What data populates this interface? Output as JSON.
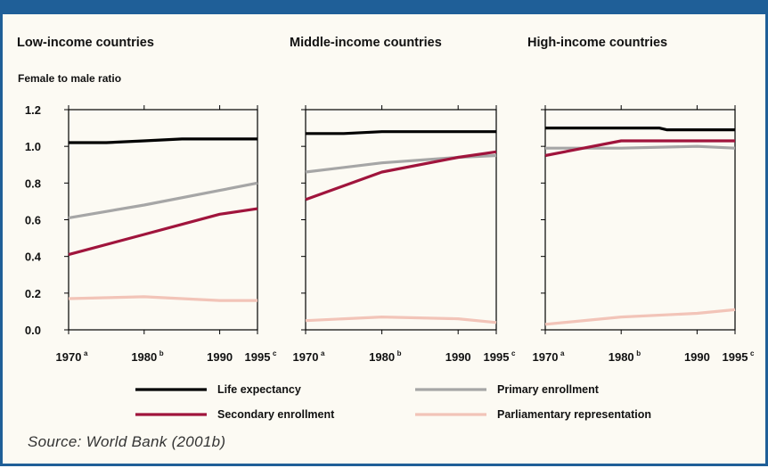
{
  "chart_data": {
    "type": "line",
    "ylabel": "Female to male ratio",
    "ylim": [
      0,
      1.2
    ],
    "y_ticks": [
      "0.0",
      "0.2",
      "0.4",
      "0.6",
      "0.8",
      "1.0",
      "1.2"
    ],
    "x": [
      1970,
      1980,
      1990,
      1995
    ],
    "x_ticks": [
      {
        "year": 1970,
        "label": "1970",
        "sup": "a"
      },
      {
        "year": 1980,
        "label": "1980",
        "sup": "b"
      },
      {
        "year": 1990,
        "label": "1990",
        "sup": ""
      },
      {
        "year": 1995,
        "label": "1995",
        "sup": "c"
      }
    ],
    "legend": [
      {
        "name": "Life expectancy",
        "color": "#000000"
      },
      {
        "name": "Primary enrollment",
        "color": "#a6a6a6"
      },
      {
        "name": "Secondary enrollment",
        "color": "#a0143c"
      },
      {
        "name": "Parliamentary representation",
        "color": "#f2c4b8"
      }
    ],
    "panels": [
      {
        "title": "Low-income countries",
        "series": [
          {
            "name": "Life expectancy",
            "color": "#000000",
            "points": [
              [
                1970,
                1.02
              ],
              [
                1975,
                1.02
              ],
              [
                1980,
                1.03
              ],
              [
                1985,
                1.04
              ],
              [
                1990,
                1.04
              ],
              [
                1995,
                1.04
              ]
            ]
          },
          {
            "name": "Primary enrollment",
            "color": "#a6a6a6",
            "points": [
              [
                1970,
                0.61
              ],
              [
                1980,
                0.68
              ],
              [
                1990,
                0.76
              ],
              [
                1995,
                0.8
              ]
            ]
          },
          {
            "name": "Secondary enrollment",
            "color": "#a0143c",
            "points": [
              [
                1970,
                0.41
              ],
              [
                1980,
                0.52
              ],
              [
                1990,
                0.63
              ],
              [
                1995,
                0.66
              ]
            ]
          },
          {
            "name": "Parliamentary representation",
            "color": "#f2c4b8",
            "points": [
              [
                1970,
                0.17
              ],
              [
                1980,
                0.18
              ],
              [
                1990,
                0.16
              ],
              [
                1995,
                0.16
              ]
            ]
          }
        ]
      },
      {
        "title": "Middle-income countries",
        "series": [
          {
            "name": "Life expectancy",
            "color": "#000000",
            "points": [
              [
                1970,
                1.07
              ],
              [
                1975,
                1.07
              ],
              [
                1980,
                1.08
              ],
              [
                1990,
                1.08
              ],
              [
                1995,
                1.08
              ]
            ]
          },
          {
            "name": "Primary enrollment",
            "color": "#a6a6a6",
            "points": [
              [
                1970,
                0.86
              ],
              [
                1980,
                0.91
              ],
              [
                1990,
                0.94
              ],
              [
                1995,
                0.95
              ]
            ]
          },
          {
            "name": "Secondary enrollment",
            "color": "#a0143c",
            "points": [
              [
                1970,
                0.71
              ],
              [
                1980,
                0.86
              ],
              [
                1990,
                0.94
              ],
              [
                1995,
                0.97
              ]
            ]
          },
          {
            "name": "Parliamentary representation",
            "color": "#f2c4b8",
            "points": [
              [
                1970,
                0.05
              ],
              [
                1980,
                0.07
              ],
              [
                1990,
                0.06
              ],
              [
                1995,
                0.04
              ]
            ]
          }
        ]
      },
      {
        "title": "High-income countries",
        "series": [
          {
            "name": "Life expectancy",
            "color": "#000000",
            "points": [
              [
                1970,
                1.1
              ],
              [
                1985,
                1.1
              ],
              [
                1986,
                1.09
              ],
              [
                1995,
                1.09
              ]
            ]
          },
          {
            "name": "Primary enrollment",
            "color": "#a6a6a6",
            "points": [
              [
                1970,
                0.99
              ],
              [
                1980,
                0.99
              ],
              [
                1990,
                1.0
              ],
              [
                1995,
                0.99
              ]
            ]
          },
          {
            "name": "Secondary enrollment",
            "color": "#a0143c",
            "points": [
              [
                1970,
                0.95
              ],
              [
                1980,
                1.03
              ],
              [
                1990,
                1.03
              ],
              [
                1995,
                1.03
              ]
            ]
          },
          {
            "name": "Parliamentary representation",
            "color": "#f2c4b8",
            "points": [
              [
                1970,
                0.03
              ],
              [
                1980,
                0.07
              ],
              [
                1990,
                0.09
              ],
              [
                1995,
                0.11
              ]
            ]
          }
        ]
      }
    ]
  },
  "source": "Source: World Bank (2001b)"
}
